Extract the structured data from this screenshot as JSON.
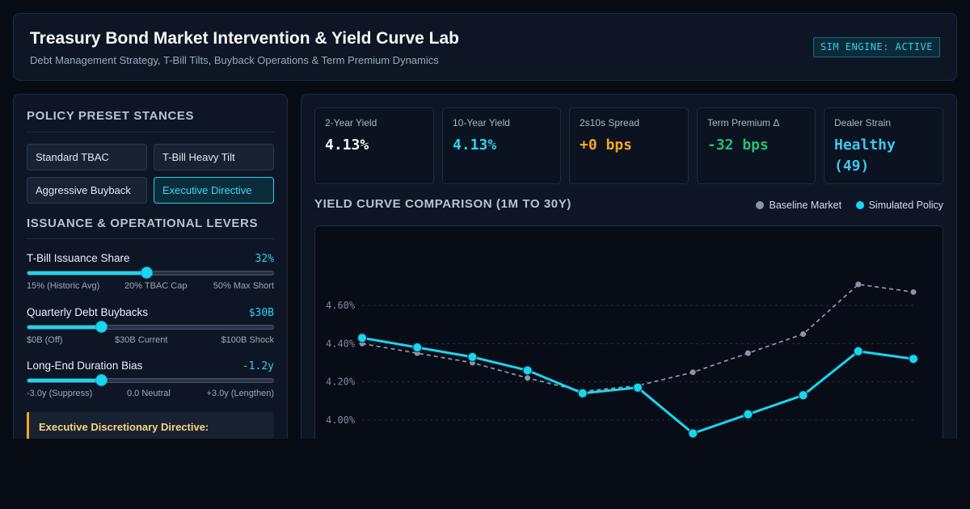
{
  "header": {
    "title": "Treasury Bond Market Intervention & Yield Curve Lab",
    "subtitle": "Debt Management Strategy, T-Bill Tilts, Buyback Operations & Term Premium Dynamics",
    "badge": "SIM ENGINE: ACTIVE"
  },
  "presets": {
    "title": "POLICY PRESET STANCES",
    "items": [
      {
        "label": "Standard TBAC",
        "active": false
      },
      {
        "label": "T-Bill Heavy Tilt",
        "active": false
      },
      {
        "label": "Aggressive Buyback",
        "active": false
      },
      {
        "label": "Executive Directive",
        "active": true
      }
    ]
  },
  "levers": {
    "title": "ISSUANCE & OPERATIONAL LEVERS",
    "items": [
      {
        "label": "T-Bill Issuance Share",
        "value": "32%",
        "fraction": 0.485,
        "ticks": [
          "15% (Historic Avg)",
          "20% TBAC Cap",
          "50% Max Short"
        ]
      },
      {
        "label": "Quarterly Debt Buybacks",
        "value": "$30B",
        "fraction": 0.3,
        "ticks": [
          "$0B (Off)",
          "$30B Current",
          "$100B Shock"
        ]
      },
      {
        "label": "Long-End Duration Bias",
        "value": "-1.2y",
        "fraction": 0.3,
        "ticks": [
          "-3.0y (Suppress)",
          "0.0 Neutral",
          "+3.0y (Lengthen)"
        ]
      }
    ]
  },
  "directive": {
    "title": "Executive Discretionary Directive:"
  },
  "kpis": [
    {
      "label": "2-Year Yield",
      "value": "4.13%",
      "color": "#f1f5f9"
    },
    {
      "label": "10-Year Yield",
      "value": "4.13%",
      "color": "#2ad4ee"
    },
    {
      "label": "2s10s Spread",
      "value": "+0 bps",
      "color": "#f5a524"
    },
    {
      "label": "Term Premium Δ",
      "value": "-32 bps",
      "color": "#22c07a"
    },
    {
      "label": "Dealer Strain",
      "value": "Healthy (49)",
      "color": "#3fc7f0"
    }
  ],
  "chart_title": "YIELD CURVE COMPARISON (1M TO 30Y)",
  "chart_data": {
    "type": "line",
    "ytick_labels": [
      "4.60%",
      "4.40%",
      "4.20%",
      "4.00%"
    ],
    "yticks": [
      4.6,
      4.4,
      4.2,
      4.0
    ],
    "series": [
      {
        "name": "Baseline Market",
        "color": "#8a94a6",
        "style": "dashed",
        "values": [
          4.4,
          4.35,
          4.3,
          4.22,
          4.15,
          4.18,
          4.25,
          4.35,
          4.45,
          4.71,
          4.67
        ]
      },
      {
        "name": "Simulated Policy",
        "color": "#18d6f0",
        "style": "solid",
        "values": [
          4.43,
          4.38,
          4.33,
          4.26,
          4.14,
          4.17,
          3.93,
          4.03,
          4.13,
          4.36,
          4.32
        ]
      }
    ]
  }
}
